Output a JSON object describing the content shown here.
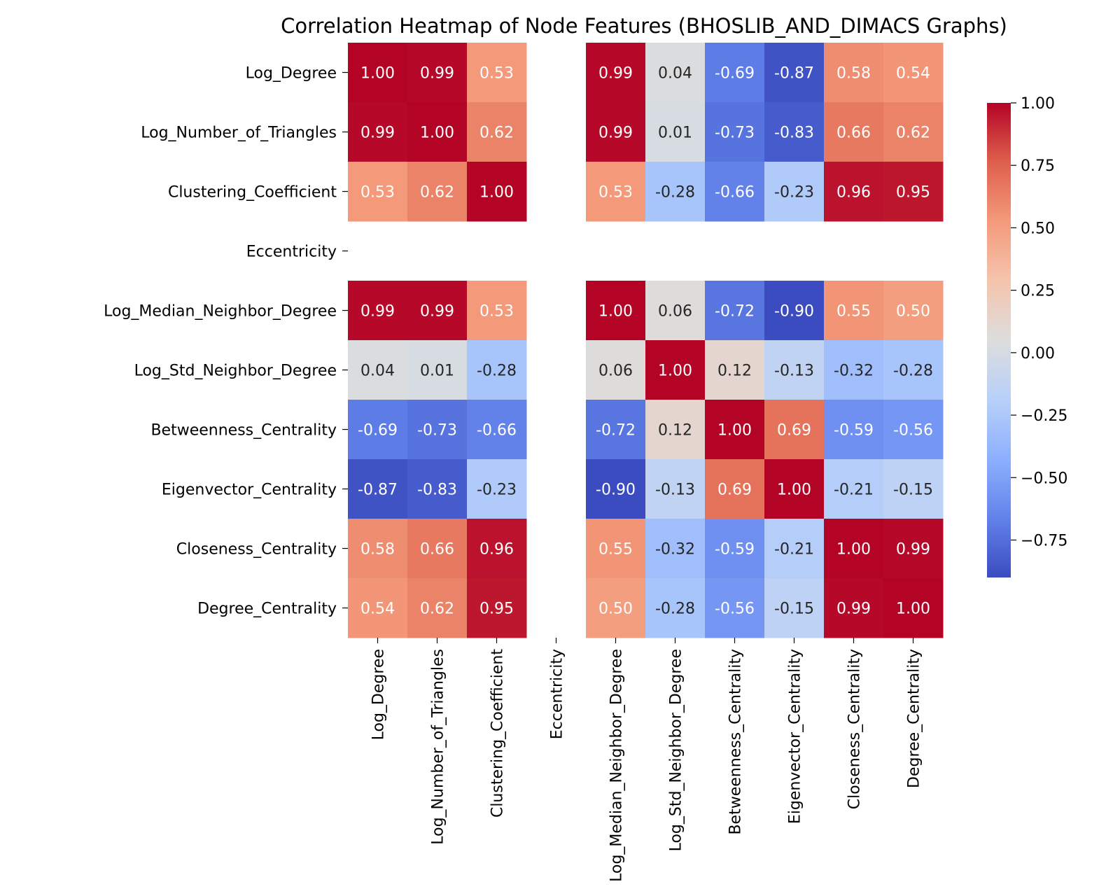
{
  "chart_data": {
    "type": "heatmap",
    "title": "Correlation Heatmap of Node Features (BHOSLIB_AND_DIMACS Graphs)",
    "xlabel": "",
    "ylabel": "",
    "labels": [
      "Log_Degree",
      "Log_Number_of_Triangles",
      "Clustering_Coefficient",
      "Eccentricity",
      "Log_Median_Neighbor_Degree",
      "Log_Std_Neighbor_Degree",
      "Betweenness_Centrality",
      "Eigenvector_Centrality",
      "Closeness_Centrality",
      "Degree_Centrality"
    ],
    "matrix": [
      [
        1.0,
        0.99,
        0.53,
        null,
        0.99,
        0.04,
        -0.69,
        -0.87,
        0.58,
        0.54
      ],
      [
        0.99,
        1.0,
        0.62,
        null,
        0.99,
        0.01,
        -0.73,
        -0.83,
        0.66,
        0.62
      ],
      [
        0.53,
        0.62,
        1.0,
        null,
        0.53,
        -0.28,
        -0.66,
        -0.23,
        0.96,
        0.95
      ],
      [
        null,
        null,
        null,
        null,
        null,
        null,
        null,
        null,
        null,
        null
      ],
      [
        0.99,
        0.99,
        0.53,
        null,
        1.0,
        0.06,
        -0.72,
        -0.9,
        0.55,
        0.5
      ],
      [
        0.04,
        0.01,
        -0.28,
        null,
        0.06,
        1.0,
        0.12,
        -0.13,
        -0.32,
        -0.28
      ],
      [
        -0.69,
        -0.73,
        -0.66,
        null,
        -0.72,
        0.12,
        1.0,
        0.69,
        -0.59,
        -0.56
      ],
      [
        -0.87,
        -0.83,
        -0.23,
        null,
        -0.9,
        -0.13,
        0.69,
        1.0,
        -0.21,
        -0.15
      ],
      [
        0.58,
        0.66,
        0.96,
        null,
        0.55,
        -0.32,
        -0.59,
        -0.21,
        1.0,
        0.99
      ],
      [
        0.54,
        0.62,
        0.95,
        null,
        0.5,
        -0.28,
        -0.56,
        -0.15,
        0.99,
        1.0
      ]
    ],
    "colorbar": {
      "colormap": "coolwarm",
      "vmin": -0.9,
      "vmax": 1.0,
      "ticks": [
        1.0,
        0.75,
        0.5,
        0.25,
        0.0,
        -0.25,
        -0.5,
        -0.75
      ],
      "tick_labels": [
        "1.00",
        "0.75",
        "0.50",
        "0.25",
        "0.00",
        "−0.25",
        "−0.50",
        "−0.75"
      ]
    },
    "grid": false,
    "legend": "colorbar-right"
  }
}
